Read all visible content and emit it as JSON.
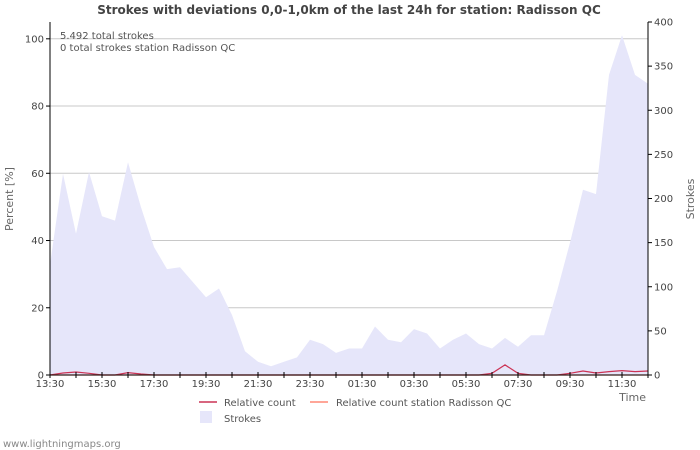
{
  "chart_data": {
    "type": "area",
    "title": "Strokes with deviations 0,0-1,0km of the last 24h for station: Radisson QC",
    "notes": [
      "5.492 total strokes",
      "0 total strokes station Radisson QC"
    ],
    "ylabel_left": "Percent   [%]",
    "ylabel_right": "Strokes",
    "xlabel": "Time",
    "ylim_left": [
      0,
      105
    ],
    "ylim_right": [
      0,
      400
    ],
    "yticks_left": [
      "0",
      "20",
      "40",
      "60",
      "80",
      "100"
    ],
    "yticks_right": [
      "0",
      "50",
      "100",
      "150",
      "200",
      "250",
      "300",
      "350",
      "400"
    ],
    "x_ticks": [
      "13:30",
      "15:30",
      "17:30",
      "19:30",
      "21:30",
      "23:30",
      "01:30",
      "03:30",
      "05:30",
      "07:30",
      "09:30",
      "11:30"
    ],
    "x_range_hours": [
      0,
      23
    ],
    "series": [
      {
        "name": "Strokes",
        "axis": "right",
        "color": "#e6e6fa",
        "x_hours": [
          0,
          0.5,
          1,
          1.5,
          2,
          2.5,
          3,
          3.5,
          4,
          4.5,
          5,
          5.5,
          6,
          6.5,
          7,
          7.5,
          8,
          8.5,
          9,
          9.5,
          10,
          10.5,
          11,
          11.5,
          12,
          12.5,
          13,
          13.5,
          14,
          14.5,
          15,
          15.5,
          16,
          16.5,
          17,
          17.5,
          18,
          18.5,
          19,
          19.5,
          20,
          20.5,
          21,
          21.5,
          22,
          22.5,
          23
        ],
        "values": [
          125,
          228,
          160,
          230,
          180,
          175,
          241,
          190,
          145,
          120,
          122,
          105,
          88,
          98,
          68,
          27,
          15,
          10,
          15,
          20,
          40,
          35,
          25,
          30,
          30,
          55,
          40,
          37,
          52,
          47,
          30,
          40,
          47,
          35,
          30,
          42,
          32,
          45,
          45,
          95,
          150,
          210,
          205,
          340,
          385,
          340,
          330
        ]
      },
      {
        "name": "Relative count",
        "axis": "left",
        "color": "#cc3355",
        "x_hours": [
          0,
          0.5,
          1,
          1.5,
          2,
          2.5,
          3,
          3.5,
          4,
          4.5,
          5,
          5.5,
          6,
          6.5,
          7,
          7.5,
          8,
          8.5,
          9,
          9.5,
          10,
          10.5,
          11,
          11.5,
          12,
          12.5,
          13,
          13.5,
          14,
          14.5,
          15,
          15.5,
          16,
          16.5,
          17,
          17.5,
          18,
          18.5,
          19,
          19.5,
          20,
          20.5,
          21,
          21.5,
          22,
          22.5,
          23
        ],
        "values": [
          0,
          0.6,
          0.9,
          0.5,
          0,
          0,
          0.7,
          0.3,
          0,
          0,
          0,
          0,
          0,
          0,
          0,
          0,
          0,
          0,
          0,
          0,
          0,
          0,
          0,
          0,
          0,
          0,
          0,
          0,
          0,
          0,
          0,
          0,
          0,
          0,
          0.5,
          3,
          0.5,
          0,
          0,
          0,
          0.5,
          1.2,
          0.6,
          1,
          1.3,
          1,
          1.2
        ]
      },
      {
        "name": "Relative count station Radisson QC",
        "axis": "left",
        "color": "#ff8877",
        "x_hours": [
          0,
          23
        ],
        "values": [
          0,
          0
        ]
      }
    ],
    "legend": [
      "Relative count",
      "Relative count station Radisson QC",
      "Strokes"
    ],
    "legend_position": "bottom",
    "grid": true
  },
  "footer": "www.lightningmaps.org"
}
